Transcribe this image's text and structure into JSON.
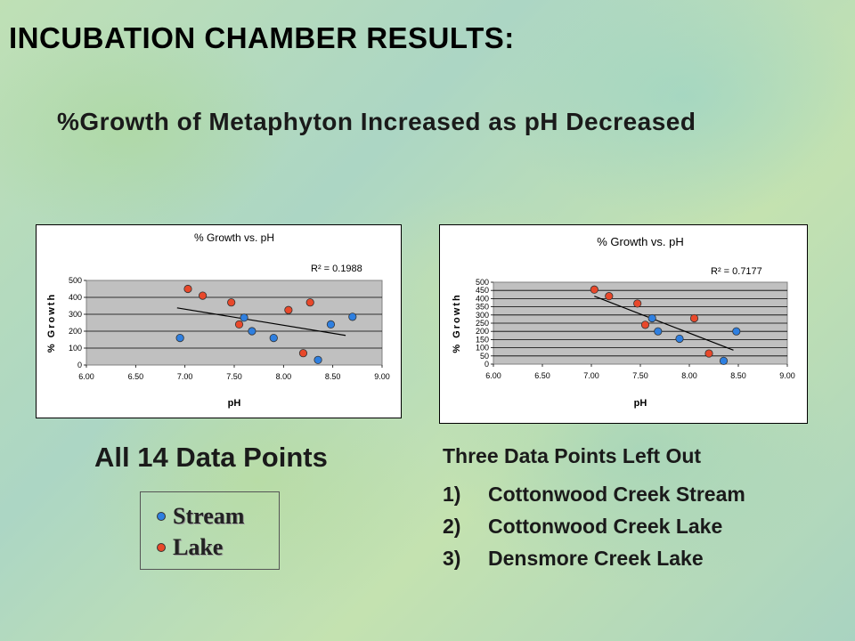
{
  "slide": {
    "title": "INCUBATION CHAMBER RESULTS:",
    "subtitle": "%Growth of Metaphyton Increased as pH Decreased",
    "left_caption": "All 14 Data Points",
    "legend": [
      {
        "label": "Stream",
        "color": "#2e7fe0"
      },
      {
        "label": "Lake",
        "color": "#e8482a"
      }
    ],
    "right_heading": "Three Data Points Left Out",
    "left_out": [
      {
        "num": "1)",
        "text": "Cottonwood Creek Stream"
      },
      {
        "num": "2)",
        "text": "Cottonwood Creek Lake"
      },
      {
        "num": "3)",
        "text": "Densmore Creek Lake"
      }
    ]
  },
  "chart_data": [
    {
      "type": "scatter",
      "title": "% Growth vs. pH",
      "xlabel": "pH",
      "ylabel": "% Growth",
      "xlim": [
        6.0,
        9.0
      ],
      "ylim": [
        0,
        500
      ],
      "xticks": [
        "6.00",
        "6.50",
        "7.00",
        "7.50",
        "8.00",
        "8.50",
        "9.00"
      ],
      "yticks": [
        "0",
        "100",
        "200",
        "300",
        "400",
        "500"
      ],
      "r2_label": "R² = 0.1988",
      "grid": true,
      "series": [
        {
          "name": "Stream",
          "color": "#2e7fe0",
          "points": [
            [
              6.95,
              160
            ],
            [
              7.6,
              280
            ],
            [
              7.68,
              200
            ],
            [
              7.9,
              160
            ],
            [
              8.35,
              30
            ],
            [
              8.48,
              240
            ],
            [
              8.7,
              285
            ]
          ]
        },
        {
          "name": "Lake",
          "color": "#e8482a",
          "points": [
            [
              7.03,
              450
            ],
            [
              7.18,
              410
            ],
            [
              7.47,
              370
            ],
            [
              7.55,
              240
            ],
            [
              8.05,
              325
            ],
            [
              8.2,
              70
            ],
            [
              8.27,
              370
            ]
          ]
        }
      ],
      "trendline": [
        [
          6.92,
          338
        ],
        [
          8.63,
          175
        ]
      ]
    },
    {
      "type": "scatter",
      "title": "% Growth vs. pH",
      "xlabel": "pH",
      "ylabel": "% Growth",
      "xlim": [
        6.0,
        9.0
      ],
      "ylim": [
        0,
        500
      ],
      "xticks": [
        "6.00",
        "6.50",
        "7.00",
        "7.50",
        "8.00",
        "8.50",
        "9.00"
      ],
      "yticks": [
        "0",
        "50",
        "100",
        "150",
        "200",
        "250",
        "300",
        "350",
        "400",
        "450",
        "500"
      ],
      "r2_label": "R² = 0.7177",
      "grid": true,
      "series": [
        {
          "name": "Stream",
          "color": "#2e7fe0",
          "points": [
            [
              7.62,
              280
            ],
            [
              7.68,
              200
            ],
            [
              7.9,
              155
            ],
            [
              8.35,
              20
            ],
            [
              8.48,
              200
            ]
          ]
        },
        {
          "name": "Lake",
          "color": "#e8482a",
          "points": [
            [
              7.03,
              455
            ],
            [
              7.18,
              415
            ],
            [
              7.47,
              370
            ],
            [
              7.55,
              240
            ],
            [
              8.05,
              280
            ],
            [
              8.2,
              65
            ]
          ]
        }
      ],
      "trendline": [
        [
          7.03,
          415
        ],
        [
          8.45,
          85
        ]
      ]
    }
  ]
}
